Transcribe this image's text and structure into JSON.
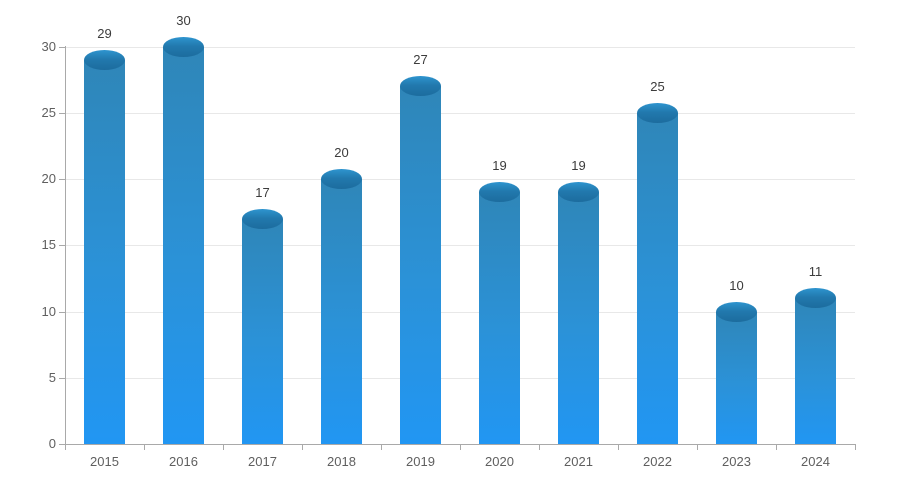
{
  "chart_data": {
    "type": "bar",
    "subtype": "cylinder",
    "title": "",
    "xlabel": "",
    "ylabel": "",
    "categories": [
      "2015",
      "2016",
      "2017",
      "2018",
      "2019",
      "2020",
      "2021",
      "2022",
      "2023",
      "2024"
    ],
    "values": [
      29,
      30,
      17,
      20,
      27,
      19,
      19,
      25,
      10,
      11
    ],
    "value_labels": [
      "29",
      "30",
      "17",
      "20",
      "27",
      "19",
      "19",
      "25",
      "10",
      "11"
    ],
    "ylim": [
      0,
      30
    ],
    "yticks": [
      0,
      5,
      10,
      15,
      20,
      25,
      30
    ],
    "ytick_labels": [
      "0",
      "5",
      "10",
      "15",
      "20",
      "25",
      "30"
    ],
    "grid": true,
    "legend": false,
    "background": "#ffffff",
    "colors": {
      "bar_gradient_top": "#2f86b8",
      "bar_gradient_mid": "#2b92d8",
      "bar_gradient_bottom": "#2196f3",
      "ellipse_top": "#2e94cf",
      "ellipse_mid": "#2279ae",
      "ellipse_bottom": "#1c6c9e",
      "gridline": "#e8e8e8",
      "axis_line": "#a9a9a9",
      "tick_label": "#5f5f5f",
      "value_label": "#3c3c3c"
    }
  }
}
